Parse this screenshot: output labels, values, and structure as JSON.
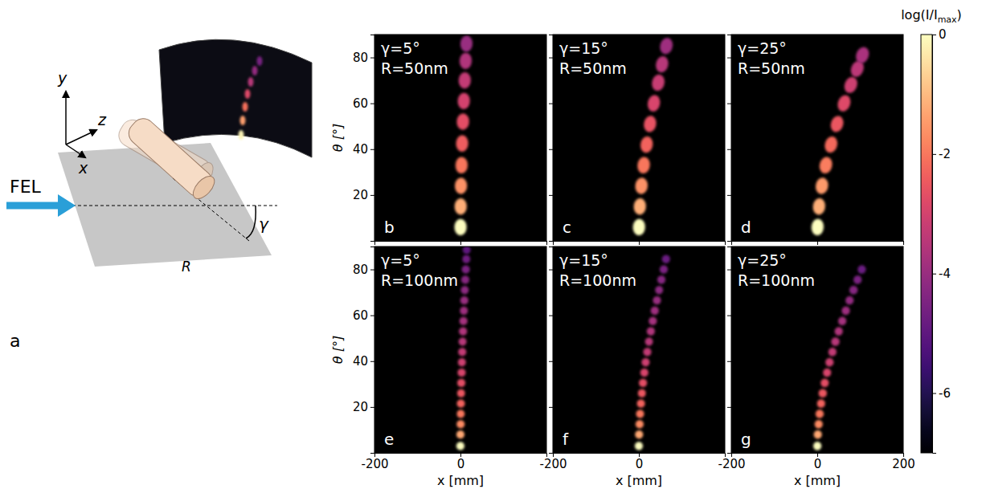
{
  "schematic": {
    "panel": "a",
    "beam_label": "FEL",
    "axis_labels": {
      "x": "x",
      "y": "y",
      "z": "z"
    },
    "radius_label": "R",
    "angle_label": "γ"
  },
  "colorbar": {
    "range": [
      -7,
      0
    ],
    "ticks": [
      0,
      -2,
      -4,
      -6
    ],
    "label": [
      "log(I/I",
      "max",
      ")"
    ]
  },
  "chart_data": [
    {
      "type": "scatter",
      "panel": "b",
      "annotations": [
        "γ=5°",
        "R=50nm"
      ],
      "xlim": [
        -200,
        200
      ],
      "xticks": [
        -200,
        0,
        200
      ],
      "ylim": [
        0,
        90
      ],
      "yticks": [
        20,
        40,
        60,
        80
      ],
      "tick_labels": "y",
      "ylabel": "θ [°]",
      "series": [
        {
          "x": [
            0.1,
            0.5,
            1.3,
            2.4,
            3.9,
            5.8,
            7.7,
            9.9,
            12,
            14
          ],
          "values": [
            6,
            15,
            24,
            33,
            42.5,
            52,
            61,
            70,
            78.5,
            86
          ],
          "intensity": [
            0,
            -1.2,
            -1.6,
            -2,
            -2.4,
            -2.7,
            -3,
            -3.3,
            -3.6,
            -4
          ]
        }
      ]
    },
    {
      "type": "scatter",
      "panel": "c",
      "annotations": [
        "γ=15°",
        "R=50nm"
      ],
      "xlim": [
        -200,
        200
      ],
      "xticks": [
        -200,
        0,
        200
      ],
      "ylim": [
        0,
        90
      ],
      "yticks": [
        20,
        40,
        60,
        80
      ],
      "tick_labels": false,
      "series": [
        {
          "x": [
            0.4,
            2.4,
            6,
            11.3,
            18,
            26,
            35,
            45,
            54,
            64
          ],
          "values": [
            6,
            15,
            24,
            33,
            42,
            51,
            60,
            69,
            77,
            85
          ],
          "intensity": [
            0,
            -1.2,
            -1.6,
            -2,
            -2.3,
            -2.6,
            -2.9,
            -3.2,
            -3.5,
            -3.9
          ]
        }
      ]
    },
    {
      "type": "scatter",
      "panel": "d",
      "annotations": [
        "γ=25°",
        "R=50nm"
      ],
      "xlim": [
        -200,
        200
      ],
      "xticks": [
        -200,
        0,
        200
      ],
      "ylim": [
        0,
        90
      ],
      "yticks": [
        20,
        40,
        60,
        80
      ],
      "tick_labels": false,
      "series": [
        {
          "x": [
            0.7,
            4.3,
            10.8,
            20,
            32,
            46,
            62.5,
            78,
            93,
            105
          ],
          "values": [
            6,
            15,
            24,
            33,
            42,
            51,
            60,
            68,
            75,
            81
          ],
          "intensity": [
            0,
            -1.2,
            -1.5,
            -1.9,
            -2.2,
            -2.5,
            -2.8,
            -3.1,
            -3.4,
            -3.7
          ]
        }
      ]
    },
    {
      "type": "scatter",
      "panel": "e",
      "annotations": [
        "γ=5°",
        "R=100nm"
      ],
      "xlim": [
        -200,
        200
      ],
      "xticks": [
        -200,
        0
      ],
      "ylim": [
        0,
        90
      ],
      "yticks": [
        20,
        40,
        60,
        80
      ],
      "tick_labels": true,
      "xlabel": "x [mm]",
      "ylabel": "θ [°]",
      "series": [
        {
          "x": [
            0,
            0.1,
            0.4,
            0.7,
            1,
            1.5,
            2.1,
            2.7,
            3.4,
            4.2,
            5,
            6,
            6.9,
            8,
            9,
            10.1,
            11.3,
            12.4,
            13.6,
            14.6
          ],
          "values": [
            3,
            8,
            12.5,
            17,
            21.5,
            26,
            30.5,
            35,
            39.5,
            44,
            48.5,
            53,
            57.5,
            62,
            66.5,
            71,
            75.5,
            80,
            84.5,
            88.5
          ],
          "intensity": [
            0,
            -1.3,
            -1.7,
            -2,
            -2.3,
            -2.5,
            -2.7,
            -2.9,
            -3.1,
            -3.3,
            -3.5,
            -3.6,
            -3.8,
            -3.9,
            -4,
            -4.2,
            -4.3,
            -4.5,
            -4.7,
            -5
          ]
        }
      ]
    },
    {
      "type": "scatter",
      "panel": "f",
      "annotations": [
        "γ=15°",
        "R=100nm"
      ],
      "xlim": [
        -200,
        200
      ],
      "xticks": [
        -200,
        0
      ],
      "ylim": [
        0,
        90
      ],
      "yticks": [
        20,
        40,
        60,
        80
      ],
      "tick_labels": "x",
      "xlabel": "x [mm]",
      "series": [
        {
          "x": [
            0.1,
            0.7,
            1.7,
            3.1,
            4.9,
            7.1,
            9.7,
            12.7,
            16,
            19.7,
            23.6,
            27.9,
            32.4,
            37.2,
            42.1,
            47.2,
            52.5,
            57.8,
            63.3
          ],
          "values": [
            3,
            8,
            12.5,
            17,
            21.5,
            26,
            30.5,
            35,
            39.5,
            44,
            48.5,
            53,
            57.5,
            62,
            66.5,
            71,
            75.5,
            80,
            84.5
          ],
          "intensity": [
            0,
            -1.3,
            -1.7,
            -2,
            -2.3,
            -2.5,
            -2.7,
            -2.9,
            -3.1,
            -3.3,
            -3.5,
            -3.6,
            -3.8,
            -3.9,
            -4,
            -4.2,
            -4.3,
            -4.5,
            -4.8
          ]
        }
      ]
    },
    {
      "type": "scatter",
      "panel": "g",
      "annotations": [
        "γ=25°",
        "R=100nm"
      ],
      "xlim": [
        -200,
        200
      ],
      "xticks": [
        -200,
        0,
        200
      ],
      "ylim": [
        0,
        90
      ],
      "yticks": [
        20,
        40,
        60,
        80
      ],
      "tick_labels": "x",
      "xlabel": "x [mm]",
      "series": [
        {
          "x": [
            0.2,
            1.2,
            3,
            5.5,
            8.7,
            12.6,
            17.3,
            22.6,
            28.5,
            35.1,
            42.1,
            49.8,
            57.9,
            66.4,
            75.1,
            84.3,
            93.8,
            103.3
          ],
          "values": [
            3,
            8,
            12.5,
            17,
            21.5,
            26,
            30.5,
            35,
            39.5,
            44,
            48.5,
            53,
            57.5,
            62,
            66.5,
            71,
            75.5,
            80
          ],
          "intensity": [
            0,
            -1.3,
            -1.7,
            -2,
            -2.3,
            -2.5,
            -2.7,
            -2.9,
            -3.1,
            -3.3,
            -3.5,
            -3.6,
            -3.8,
            -3.9,
            -4.1,
            -4.3,
            -4.5,
            -4.8
          ]
        }
      ]
    }
  ]
}
